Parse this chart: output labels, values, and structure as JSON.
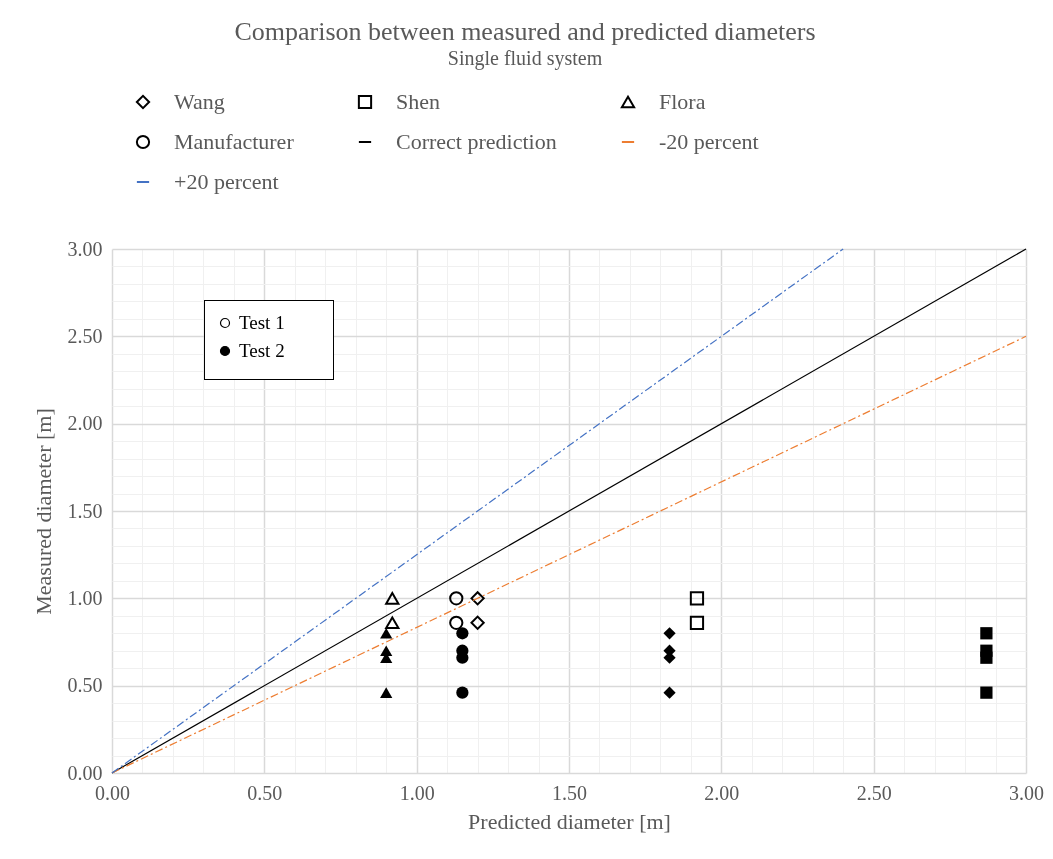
{
  "chart_data": {
    "type": "scatter",
    "title": "Comparison between measured and predicted diameters",
    "subtitle": "Single fluid system",
    "xlabel": "Predicted diameter [m]",
    "ylabel": "Measured diameter [m]",
    "xlim": [
      0,
      3
    ],
    "ylim": [
      0,
      3
    ],
    "xticks": [
      {
        "value": 0,
        "label": "0.00"
      },
      {
        "value": 0.1,
        "label": null
      },
      {
        "value": 0.2,
        "label": null
      },
      {
        "value": 0.3,
        "label": null
      },
      {
        "value": 0.4,
        "label": null
      },
      {
        "value": 0.5,
        "label": "0.50"
      },
      {
        "value": 0.6,
        "label": null
      },
      {
        "value": 0.7,
        "label": null
      },
      {
        "value": 0.8,
        "label": null
      },
      {
        "value": 0.9,
        "label": null
      },
      {
        "value": 1,
        "label": "1.00"
      },
      {
        "value": 1.1,
        "label": null
      },
      {
        "value": 1.2,
        "label": null
      },
      {
        "value": 1.3,
        "label": null
      },
      {
        "value": 1.4,
        "label": null
      },
      {
        "value": 1.5,
        "label": "1.50"
      },
      {
        "value": 1.6,
        "label": null
      },
      {
        "value": 1.7,
        "label": null
      },
      {
        "value": 1.8,
        "label": null
      },
      {
        "value": 1.9,
        "label": null
      },
      {
        "value": 2,
        "label": "2.00"
      },
      {
        "value": 2.1,
        "label": null
      },
      {
        "value": 2.2,
        "label": null
      },
      {
        "value": 2.3,
        "label": null
      },
      {
        "value": 2.4,
        "label": null
      },
      {
        "value": 2.5,
        "label": "2.50"
      },
      {
        "value": 2.6,
        "label": null
      },
      {
        "value": 2.7,
        "label": null
      },
      {
        "value": 2.8,
        "label": null
      },
      {
        "value": 2.9,
        "label": null
      },
      {
        "value": 3,
        "label": "3.00"
      }
    ],
    "yticks": [
      {
        "value": 0,
        "label": "0.00"
      },
      {
        "value": 0.1,
        "label": null
      },
      {
        "value": 0.2,
        "label": null
      },
      {
        "value": 0.3,
        "label": null
      },
      {
        "value": 0.4,
        "label": null
      },
      {
        "value": 0.5,
        "label": "0.50"
      },
      {
        "value": 0.6,
        "label": null
      },
      {
        "value": 0.7,
        "label": null
      },
      {
        "value": 0.8,
        "label": null
      },
      {
        "value": 0.9,
        "label": null
      },
      {
        "value": 1,
        "label": "1.00"
      },
      {
        "value": 1.1,
        "label": null
      },
      {
        "value": 1.2,
        "label": null
      },
      {
        "value": 1.3,
        "label": null
      },
      {
        "value": 1.4,
        "label": null
      },
      {
        "value": 1.5,
        "label": "1.50"
      },
      {
        "value": 1.6,
        "label": null
      },
      {
        "value": 1.7,
        "label": null
      },
      {
        "value": 1.8,
        "label": null
      },
      {
        "value": 1.9,
        "label": null
      },
      {
        "value": 2,
        "label": "2.00"
      },
      {
        "value": 2.1,
        "label": null
      },
      {
        "value": 2.2,
        "label": null
      },
      {
        "value": 2.3,
        "label": null
      },
      {
        "value": 2.4,
        "label": null
      },
      {
        "value": 2.5,
        "label": "2.50"
      },
      {
        "value": 2.6,
        "label": null
      },
      {
        "value": 2.7,
        "label": null
      },
      {
        "value": 2.8,
        "label": null
      },
      {
        "value": 2.9,
        "label": null
      },
      {
        "value": 3,
        "label": "3.00"
      }
    ],
    "grid": true,
    "legend": "top",
    "series": [
      {
        "name": "Wang",
        "marker": "diamond",
        "color": "#000000",
        "x": [
          1.2,
          1.2
        ],
        "values": [
          1.0,
          0.86
        ]
      },
      {
        "name": "Shen",
        "marker": "square",
        "color": "#000000",
        "x": [
          1.92,
          1.92
        ],
        "values": [
          1.0,
          0.86
        ]
      },
      {
        "name": "Flora",
        "marker": "triangle",
        "color": "#000000",
        "x": [
          0.92,
          0.92
        ],
        "values": [
          1.0,
          0.86
        ]
      },
      {
        "name": "Manufacturer",
        "marker": "circle",
        "color": "#000000",
        "x": [
          1.13,
          1.13
        ],
        "values": [
          1.0,
          0.86
        ]
      },
      {
        "name": "Correct prediction",
        "type": "line",
        "line_style": "solid",
        "color": "#000000",
        "x": [
          0,
          3
        ],
        "values": [
          0,
          3
        ]
      },
      {
        "name": "-20 percent",
        "type": "line",
        "line_style": "dashed",
        "color": "#ed7d31",
        "x": [
          0,
          3
        ],
        "values": [
          0,
          2.5
        ]
      },
      {
        "name": "+20 percent",
        "type": "line",
        "line_style": "dashed",
        "color": "#4472c4",
        "x": [
          0,
          2.4
        ],
        "values": [
          0,
          3
        ]
      },
      {
        "marker": "diamond",
        "color": "#000000",
        "x": [
          1.83,
          1.83,
          1.83,
          1.83
        ],
        "values": [
          0.8,
          0.7,
          0.66,
          0.46
        ]
      },
      {
        "marker": "square",
        "color": "#000000",
        "x": [
          2.87,
          2.87,
          2.87,
          2.87
        ],
        "values": [
          0.8,
          0.7,
          0.66,
          0.46
        ]
      },
      {
        "marker": "triangle",
        "color": "#000000",
        "x": [
          0.9,
          0.9,
          0.9,
          0.9
        ],
        "values": [
          0.8,
          0.7,
          0.66,
          0.46
        ]
      },
      {
        "marker": "circle",
        "color": "#000000",
        "x": [
          1.15,
          1.15,
          1.15,
          1.15
        ],
        "values": [
          0.8,
          0.7,
          0.66,
          0.46
        ]
      }
    ],
    "annotations": [
      "Test 1",
      "Test 2"
    ]
  }
}
